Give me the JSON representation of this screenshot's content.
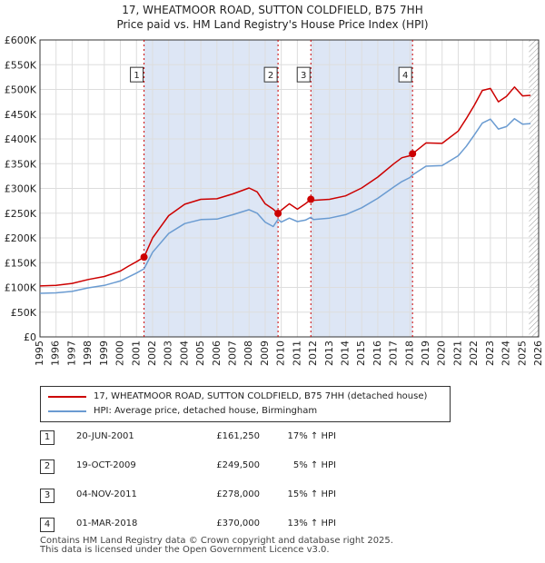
{
  "title_line1": "17, WHEATMOOR ROAD, SUTTON COLDFIELD, B75 7HH",
  "title_line2": "Price paid vs. HM Land Registry's House Price Index (HPI)",
  "colors": {
    "property": "#cc0000",
    "hpi": "#6a9bd1",
    "shade": "#dde6f5",
    "grid": "#dddddd"
  },
  "chart_data": {
    "type": "line",
    "xlim": [
      1995,
      2026
    ],
    "ylim": [
      0,
      600000
    ],
    "y_ticks": [
      0,
      50000,
      100000,
      150000,
      200000,
      250000,
      300000,
      350000,
      400000,
      450000,
      500000,
      550000,
      600000
    ],
    "y_tick_labels": [
      "£0",
      "£50K",
      "£100K",
      "£150K",
      "£200K",
      "£250K",
      "£300K",
      "£350K",
      "£400K",
      "£450K",
      "£500K",
      "£550K",
      "£600K"
    ],
    "x_ticks": [
      1995,
      1996,
      1997,
      1998,
      1999,
      2000,
      2001,
      2002,
      2003,
      2004,
      2005,
      2006,
      2007,
      2008,
      2009,
      2010,
      2011,
      2012,
      2013,
      2014,
      2015,
      2016,
      2017,
      2018,
      2019,
      2020,
      2021,
      2022,
      2023,
      2024,
      2025,
      2026
    ],
    "shaded_ranges": [
      [
        2001.47,
        2009.8
      ],
      [
        2011.84,
        2018.16
      ]
    ],
    "hatched_from": 2025.4,
    "series": [
      {
        "name": "17, WHEATMOOR ROAD, SUTTON COLDFIELD, B75 7HH (detached house)",
        "x": [
          1995,
          1996,
          1997,
          1998,
          1999,
          2000,
          2000.5,
          2001,
          2001.47,
          2002,
          2003,
          2004,
          2005,
          2006,
          2007,
          2008,
          2008.5,
          2009,
          2009.5,
          2009.8,
          2010,
          2010.5,
          2011,
          2011.5,
          2011.84,
          2012,
          2013,
          2014,
          2015,
          2016,
          2017,
          2017.5,
          2018,
          2018.16,
          2019,
          2020,
          2021,
          2021.5,
          2022,
          2022.5,
          2023,
          2023.5,
          2024,
          2024.5,
          2025,
          2025.5
        ],
        "values": [
          103000,
          104000,
          108000,
          116000,
          122000,
          133000,
          143000,
          152000,
          161250,
          200000,
          245000,
          268000,
          278000,
          279000,
          289000,
          301000,
          293000,
          269000,
          258000,
          249500,
          256000,
          269000,
          258000,
          269000,
          278000,
          276000,
          278000,
          285000,
          301000,
          323000,
          350000,
          362000,
          366000,
          370000,
          392000,
          391000,
          416000,
          441000,
          468000,
          498000,
          502000,
          475000,
          486000,
          505000,
          487000,
          488000
        ]
      },
      {
        "name": "HPI: Average price, detached house, Birmingham",
        "x": [
          1995,
          1996,
          1997,
          1998,
          1999,
          2000,
          2000.5,
          2001,
          2001.47,
          2002,
          2003,
          2004,
          2005,
          2006,
          2007,
          2008,
          2008.5,
          2009,
          2009.5,
          2009.8,
          2010,
          2010.5,
          2011,
          2011.5,
          2011.84,
          2012,
          2013,
          2014,
          2015,
          2016,
          2017,
          2017.5,
          2018,
          2018.16,
          2019,
          2020,
          2021,
          2021.5,
          2022,
          2022.5,
          2023,
          2023.5,
          2024,
          2024.5,
          2025,
          2025.5
        ],
        "values": [
          88000,
          89000,
          92000,
          99000,
          104000,
          113000,
          121000,
          129000,
          137700,
          171000,
          209000,
          229000,
          237000,
          238000,
          247000,
          257000,
          250000,
          232000,
          223000,
          237600,
          232000,
          240000,
          233000,
          236000,
          241700,
          237000,
          240000,
          247000,
          261000,
          280000,
          303000,
          314000,
          322000,
          327400,
          345000,
          346000,
          366000,
          385000,
          408000,
          432000,
          440000,
          420000,
          425000,
          441000,
          430000,
          431000
        ]
      }
    ],
    "sale_markers": [
      {
        "label": "1",
        "x": 2001.47,
        "value": 161250
      },
      {
        "label": "2",
        "x": 2009.8,
        "value": 249500
      },
      {
        "label": "3",
        "x": 2011.84,
        "value": 278000
      },
      {
        "label": "4",
        "x": 2018.16,
        "value": 370000
      }
    ],
    "marker_label_value": 530000
  },
  "legend": {
    "property": "17, WHEATMOOR ROAD, SUTTON COLDFIELD, B75 7HH (detached house)",
    "hpi": "HPI: Average price, detached house, Birmingham"
  },
  "sales": [
    {
      "num": "1",
      "date": "20-JUN-2001",
      "price": "£161,250",
      "hpi": "17% ↑ HPI"
    },
    {
      "num": "2",
      "date": "19-OCT-2009",
      "price": "£249,500",
      "hpi": "5% ↑ HPI"
    },
    {
      "num": "3",
      "date": "04-NOV-2011",
      "price": "£278,000",
      "hpi": "15% ↑ HPI"
    },
    {
      "num": "4",
      "date": "01-MAR-2018",
      "price": "£370,000",
      "hpi": "13% ↑ HPI"
    }
  ],
  "footer_line1": "Contains HM Land Registry data © Crown copyright and database right 2025.",
  "footer_line2": "This data is licensed under the Open Government Licence v3.0."
}
